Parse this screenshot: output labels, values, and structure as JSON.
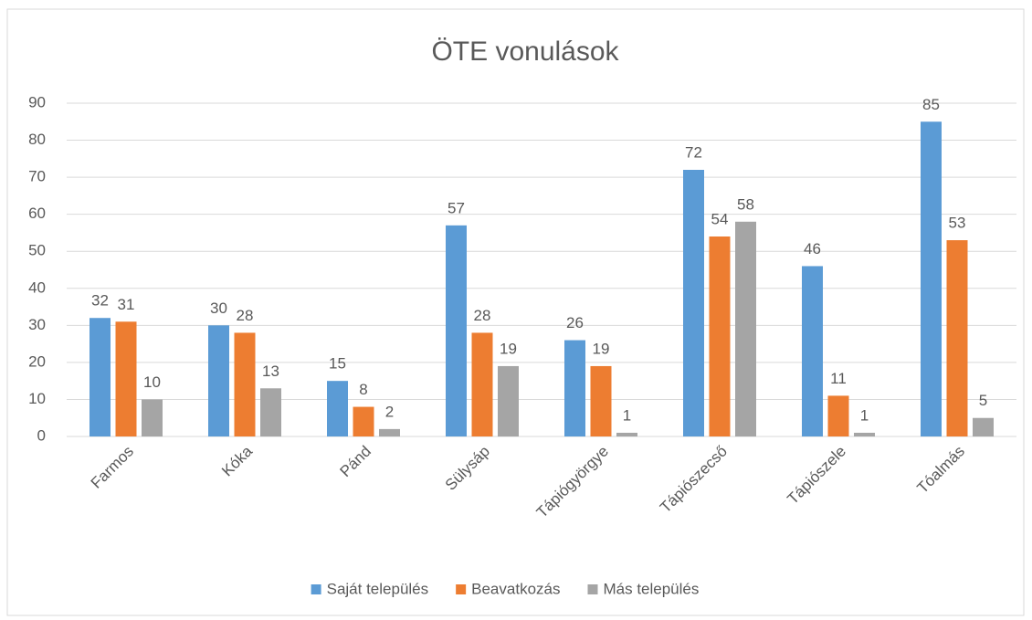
{
  "chart_data": {
    "type": "bar",
    "title": "ÖTE vonulások",
    "categories": [
      "Farmos",
      "Kóka",
      "Pánd",
      "Sülysáp",
      "Tápiógyörgye",
      "Tápiószecső",
      "Tápiószele",
      "Tóalmás"
    ],
    "series": [
      {
        "name": "Saját település",
        "color": "#5b9bd5",
        "values": [
          32,
          30,
          15,
          57,
          26,
          72,
          46,
          85
        ]
      },
      {
        "name": "Beavatkozás",
        "color": "#ed7d31",
        "values": [
          31,
          28,
          8,
          28,
          19,
          54,
          11,
          53
        ]
      },
      {
        "name": "Más település",
        "color": "#a5a5a5",
        "values": [
          10,
          13,
          2,
          19,
          1,
          58,
          1,
          5
        ]
      }
    ],
    "ylim": [
      0,
      90
    ],
    "yticks": [
      0,
      10,
      20,
      30,
      40,
      50,
      60,
      70,
      80,
      90
    ],
    "grid": true,
    "legend": "bottom"
  }
}
